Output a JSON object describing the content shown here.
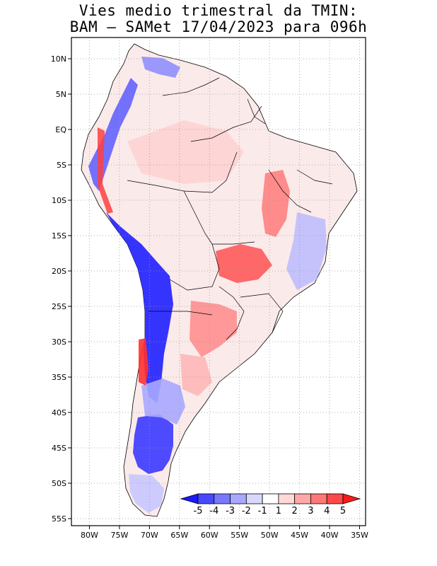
{
  "title": {
    "line1": "Vies medio trimestral da TMIN:",
    "line2": "BAM – SAMet 17/04/2023  para 096h"
  },
  "map": {
    "region": "South America",
    "lon_range": [
      -83,
      -34
    ],
    "lat_range": [
      -56,
      13
    ],
    "grid": true,
    "lon_ticks": [
      "80W",
      "75W",
      "70W",
      "65W",
      "60W",
      "55W",
      "50W",
      "45W",
      "40W",
      "35W"
    ],
    "lat_ticks": [
      "10N",
      "5N",
      "EQ",
      "5S",
      "10S",
      "15S",
      "20S",
      "25S",
      "30S",
      "35S",
      "40S",
      "45S",
      "50S",
      "55S"
    ]
  },
  "colorbar": {
    "levels": [
      "-5",
      "-4",
      "-3",
      "-2",
      "-1",
      "1",
      "2",
      "3",
      "4",
      "5"
    ],
    "colors": [
      "#1a1aff",
      "#4848ff",
      "#7878ff",
      "#a8a8ff",
      "#d8d8ff",
      "#ffffff",
      "#ffd8d8",
      "#ffa8a8",
      "#ff7878",
      "#ff4848",
      "#ff1a1a"
    ]
  }
}
